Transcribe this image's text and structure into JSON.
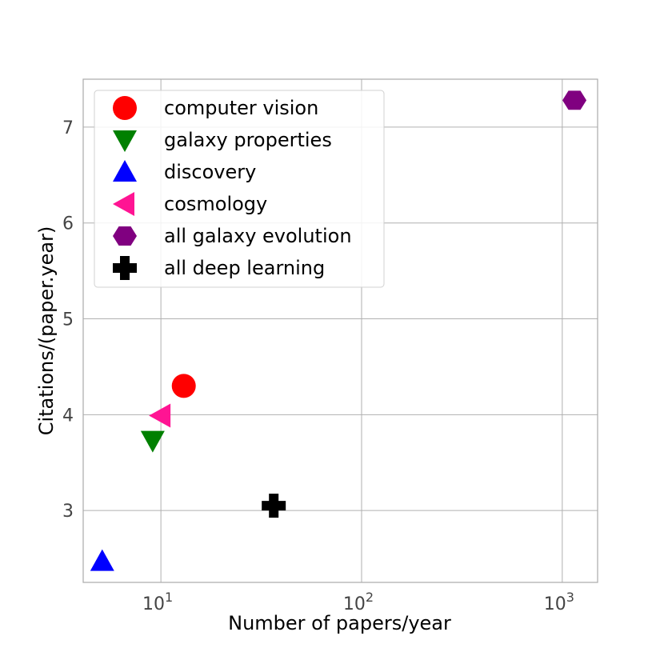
{
  "chart_data": {
    "type": "scatter",
    "xlabel": "Number of papers/year",
    "ylabel": "Citations/(paper.year)",
    "xscale": "log",
    "xlim": [
      4.1,
      1500
    ],
    "ylim": [
      2.25,
      7.5
    ],
    "xticks": [
      {
        "value": 10,
        "base": "10",
        "exp": "1"
      },
      {
        "value": 100,
        "base": "10",
        "exp": "2"
      },
      {
        "value": 1000,
        "base": "10",
        "exp": "3"
      }
    ],
    "yticks": [
      3,
      4,
      5,
      6,
      7
    ],
    "grid": true,
    "legend_position": "top-left",
    "series": [
      {
        "name": "computer vision",
        "marker": "circle",
        "color": "#ff0000",
        "x": 13,
        "y": 4.3
      },
      {
        "name": "galaxy properties",
        "marker": "triangle-down",
        "color": "#008000",
        "x": 9.1,
        "y": 3.73
      },
      {
        "name": "discovery",
        "marker": "triangle-up",
        "color": "#0000ff",
        "x": 5.1,
        "y": 2.47
      },
      {
        "name": "cosmology",
        "marker": "triangle-left",
        "color": "#ff1493",
        "x": 10.0,
        "y": 3.99
      },
      {
        "name": "all galaxy evolution",
        "marker": "hexagon",
        "color": "#800080",
        "x": 1150,
        "y": 7.28
      },
      {
        "name": "all deep learning",
        "marker": "plus",
        "color": "#000000",
        "x": 36.5,
        "y": 3.05
      }
    ]
  }
}
